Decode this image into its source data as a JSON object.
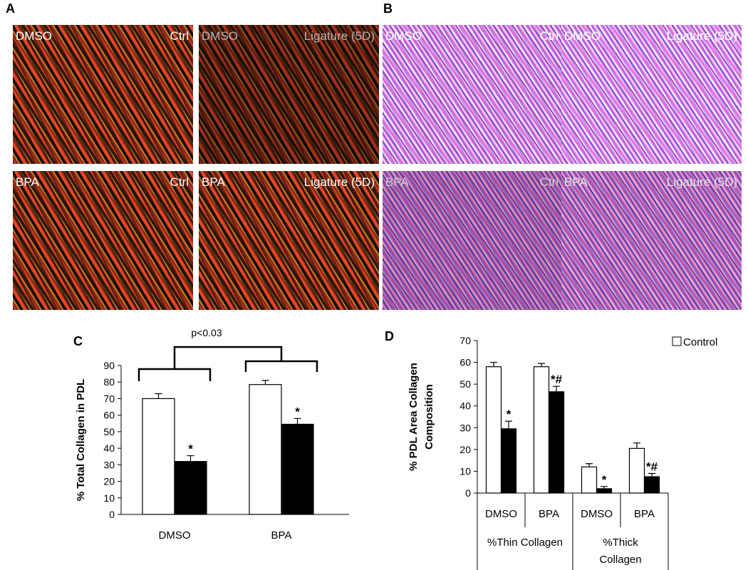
{
  "panels": [
    {
      "letter": "A",
      "images": [
        {
          "group": "DMSO",
          "condition": "Ctrl"
        },
        {
          "group": "DMSO",
          "condition": "Ligature (5D)"
        },
        {
          "group": "BPA",
          "condition": "Ctrl"
        },
        {
          "group": "BPA",
          "condition": "Ligature (5D)"
        }
      ]
    },
    {
      "letter": "B",
      "images": [
        {
          "group": "DMSO",
          "condition": "Ctrl"
        },
        {
          "group": "DMSO",
          "condition": "Ligature (5D)"
        },
        {
          "group": "BPA",
          "condition": "Ctrl"
        },
        {
          "group": "BPA",
          "condition": "Ligature (5D)"
        }
      ]
    }
  ],
  "chart_data": [
    {
      "type": "bar",
      "panel": "C",
      "ylabel": "% Total Collagen in PDL",
      "categories": [
        "DMSO",
        "BPA"
      ],
      "series": [
        {
          "color": "#ffffff",
          "values": [
            70,
            78.5
          ],
          "errors": [
            3,
            2.5
          ]
        },
        {
          "color": "#000000",
          "values": [
            32,
            54.5
          ],
          "errors": [
            3.5,
            3.5
          ],
          "labels": [
            "*",
            "*"
          ]
        }
      ],
      "ylim": [
        0,
        90
      ],
      "yticks": [
        0,
        10,
        20,
        30,
        40,
        50,
        60,
        70,
        80,
        90
      ],
      "annotation": "p<0.03"
    },
    {
      "type": "bar",
      "panel": "D",
      "ylabel": [
        "% PDL Area Collagen",
        "Composition"
      ],
      "categories": [
        "DMSO",
        "BPA",
        "DMSO",
        "BPA"
      ],
      "groups": [
        "%Thin Collagen",
        "%Thick Collagen"
      ],
      "series": [
        {
          "name": "Control",
          "color": "#ffffff",
          "values": [
            58,
            58,
            12,
            20.5
          ],
          "errors": [
            2,
            1.5,
            1.5,
            2.5
          ]
        },
        {
          "color": "#000000",
          "values": [
            29.5,
            46.5,
            2,
            7.5
          ],
          "errors": [
            3.5,
            2.5,
            1,
            1.5
          ],
          "labels": [
            "*",
            "*#",
            "*",
            "*#"
          ]
        }
      ],
      "ylim": [
        0,
        70
      ],
      "yticks": [
        0,
        10,
        20,
        30,
        40,
        50,
        60,
        70
      ],
      "legend": "upper right"
    }
  ]
}
